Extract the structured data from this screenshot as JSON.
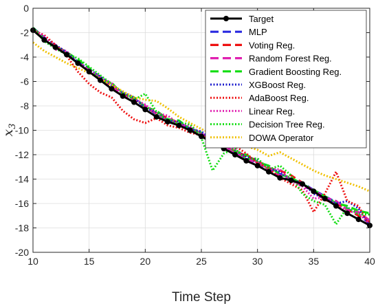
{
  "chart_data": {
    "type": "line",
    "title": "",
    "xlabel": "Time Step",
    "ylabel": "x",
    "ylabel_subscript": "3",
    "xlim": [
      10,
      40
    ],
    "ylim": [
      -20,
      0
    ],
    "xticks": [
      "10",
      "15",
      "20",
      "25",
      "30",
      "35",
      "40"
    ],
    "yticks": [
      "0",
      "-2",
      "-4",
      "-6",
      "-8",
      "-10",
      "-12",
      "-14",
      "-16",
      "-18",
      "-20"
    ],
    "grid": true,
    "legend_position": "top-right",
    "x": [
      10,
      11,
      12,
      13,
      14,
      15,
      16,
      17,
      18,
      19,
      20,
      21,
      22,
      23,
      24,
      25,
      26,
      27,
      28,
      29,
      30,
      31,
      32,
      33,
      34,
      35,
      36,
      37,
      38,
      39,
      40
    ],
    "series": [
      {
        "name": "Target",
        "color": "#000000",
        "style": "solid-marker",
        "values": [
          -1.8,
          -2.6,
          -3.2,
          -3.8,
          -4.5,
          -5.2,
          -5.9,
          -6.6,
          -7.2,
          -7.7,
          -8.3,
          -8.9,
          -9.3,
          -9.6,
          -10.0,
          -10.5,
          -11.0,
          -11.5,
          -12.0,
          -12.5,
          -12.9,
          -13.4,
          -13.9,
          -14.1,
          -14.4,
          -15.0,
          -15.6,
          -16.2,
          -16.8,
          -17.3,
          -17.8
        ]
      },
      {
        "name": "MLP",
        "color": "#2828e0",
        "style": "dashed",
        "values": [
          -1.6,
          -2.4,
          -3.1,
          -3.7,
          -4.3,
          -5.0,
          -5.7,
          -6.2,
          -7.0,
          -7.5,
          -8.0,
          -8.7,
          -9.1,
          -9.5,
          -9.8,
          -10.3,
          -10.8,
          -11.3,
          -11.8,
          -12.3,
          -12.7,
          -13.2,
          -13.6,
          -14.0,
          -14.3,
          -14.9,
          -15.4,
          -15.9,
          -16.4,
          -17.0,
          -17.6
        ]
      },
      {
        "name": "Voting Reg.",
        "color": "#ee1111",
        "style": "dashed",
        "values": [
          -1.7,
          -2.5,
          -3.1,
          -3.6,
          -4.4,
          -5.1,
          -5.8,
          -6.4,
          -7.0,
          -7.5,
          -8.1,
          -8.6,
          -9.0,
          -9.4,
          -9.9,
          -10.4,
          -10.9,
          -11.4,
          -11.7,
          -12.1,
          -12.5,
          -13.1,
          -13.3,
          -13.7,
          -14.3,
          -15.0,
          -15.7,
          -16.0,
          -16.5,
          -17.0,
          -17.5
        ]
      },
      {
        "name": "Random Forest Reg.",
        "color": "#e020b0",
        "style": "dashed",
        "values": [
          -1.7,
          -2.6,
          -3.0,
          -3.8,
          -4.3,
          -5.1,
          -5.6,
          -6.5,
          -7.1,
          -7.6,
          -8.0,
          -8.6,
          -9.2,
          -9.5,
          -9.8,
          -10.5,
          -10.7,
          -11.2,
          -11.9,
          -12.4,
          -12.6,
          -13.3,
          -13.7,
          -14.0,
          -14.6,
          -14.9,
          -15.5,
          -15.8,
          -16.5,
          -16.7,
          -17.4
        ]
      },
      {
        "name": "Gradient Boosting Reg.",
        "color": "#11dd11",
        "style": "dashed",
        "values": [
          -1.6,
          -2.5,
          -3.2,
          -3.6,
          -4.2,
          -4.9,
          -5.9,
          -6.1,
          -7.1,
          -7.3,
          -8.1,
          -8.4,
          -9.1,
          -9.2,
          -9.9,
          -10.2,
          -10.9,
          -11.0,
          -11.7,
          -12.0,
          -12.6,
          -12.9,
          -13.6,
          -13.9,
          -14.4,
          -14.9,
          -15.4,
          -16.0,
          -16.2,
          -16.6,
          -16.8
        ]
      },
      {
        "name": "XGBoost Reg.",
        "color": "#1a1acc",
        "style": "dotted",
        "values": [
          -1.7,
          -2.4,
          -3.0,
          -3.6,
          -4.4,
          -5.0,
          -5.6,
          -6.3,
          -6.9,
          -7.3,
          -8.2,
          -8.5,
          -9.2,
          -9.3,
          -9.9,
          -10.1,
          -10.7,
          -11.2,
          -11.6,
          -12.2,
          -12.4,
          -13.1,
          -13.4,
          -14.1,
          -14.3,
          -15.2,
          -15.6,
          -16.0,
          -15.8,
          -16.4,
          -17.9
        ]
      },
      {
        "name": "AdaBoost Reg.",
        "color": "#ee1111",
        "style": "dotted",
        "values": [
          -1.8,
          -2.2,
          -3.0,
          -3.9,
          -5.2,
          -6.2,
          -6.9,
          -7.3,
          -8.4,
          -9.1,
          -9.4,
          -9.0,
          -9.6,
          -9.8,
          -10.2,
          -10.4,
          -10.6,
          -11.2,
          -11.3,
          -11.9,
          -12.7,
          -13.1,
          -13.9,
          -14.4,
          -14.9,
          -16.7,
          -15.2,
          -13.4,
          -15.8,
          -16.2,
          -17.9
        ]
      },
      {
        "name": "Linear Reg.",
        "color": "#e020b0",
        "style": "dotted",
        "values": [
          -1.7,
          -2.3,
          -3.4,
          -3.5,
          -4.6,
          -5.0,
          -5.8,
          -6.1,
          -7.2,
          -7.4,
          -7.9,
          -8.6,
          -8.8,
          -9.5,
          -9.6,
          -10.3,
          -10.5,
          -11.4,
          -11.5,
          -12.5,
          -12.6,
          -13.2,
          -13.2,
          -14.2,
          -14.6,
          -15.6,
          -15.5,
          -16.1,
          -16.6,
          -16.8,
          -17.7
        ]
      },
      {
        "name": "Decision Tree Reg.",
        "color": "#11dd11",
        "style": "dotted",
        "values": [
          -1.6,
          -2.7,
          -3.3,
          -3.8,
          -4.1,
          -4.8,
          -5.5,
          -6.2,
          -6.9,
          -7.5,
          -7.0,
          -8.5,
          -9.3,
          -9.4,
          -9.5,
          -10.6,
          -13.3,
          -11.9,
          -11.5,
          -12.4,
          -12.3,
          -13.2,
          -12.9,
          -13.7,
          -15.2,
          -15.8,
          -16.1,
          -17.7,
          -16.3,
          -16.9,
          -16.9
        ]
      },
      {
        "name": "DOWA Operator",
        "color": "#f0c000",
        "style": "dotted",
        "values": [
          -2.8,
          -3.5,
          -4.0,
          -4.5,
          -4.9,
          -5.3,
          -5.8,
          -6.3,
          -6.8,
          -7.3,
          -7.5,
          -7.6,
          -8.2,
          -8.9,
          -9.4,
          -9.9,
          -10.3,
          -10.6,
          -11.0,
          -11.3,
          -11.6,
          -12.1,
          -11.8,
          -12.3,
          -12.8,
          -13.3,
          -13.7,
          -14.0,
          -14.3,
          -14.6,
          -15.0
        ]
      }
    ]
  }
}
